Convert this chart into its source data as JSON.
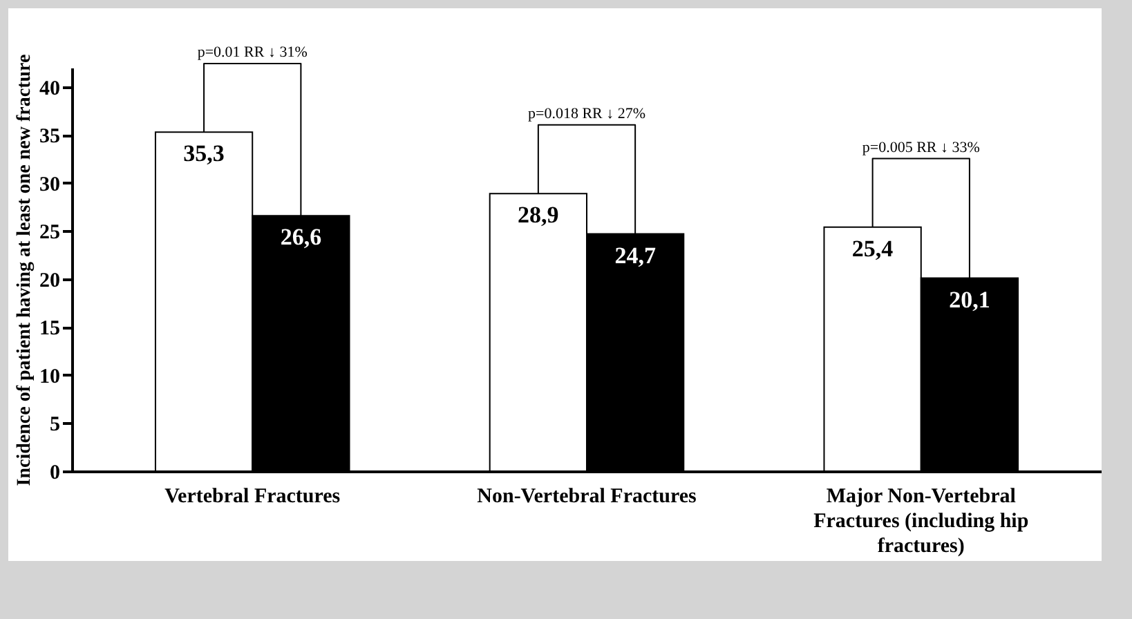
{
  "chart_data": {
    "type": "bar",
    "ylabel": "Incidence of patient having at least one new fracture",
    "categories": [
      "Vertebral Fractures",
      "Non-Vertebral Fractures",
      "Major Non-Vertebral Fractures (including hip fractures)"
    ],
    "series": [
      {
        "color": "#ffffff",
        "values": [
          35.3,
          28.9,
          25.4
        ],
        "value_labels": [
          "35,3",
          "28,9",
          "25,4"
        ]
      },
      {
        "color": "#000000",
        "values": [
          26.6,
          24.7,
          20.1
        ],
        "value_labels": [
          "26,6",
          "24,7",
          "20,1"
        ]
      }
    ],
    "ylim": [
      0,
      42
    ],
    "yticks": [
      0,
      5,
      10,
      15,
      20,
      25,
      30,
      35,
      40
    ],
    "grid": false,
    "annotations": [
      "p=0.01    RR ↓ 31%",
      "p=0.018    RR ↓ 27%",
      "p=0.005    RR ↓ 33%"
    ]
  }
}
